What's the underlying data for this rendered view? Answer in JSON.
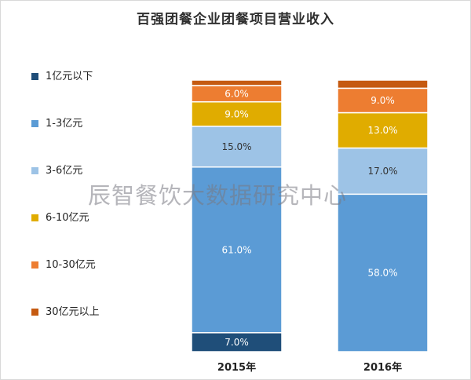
{
  "chart_data": {
    "type": "bar",
    "stacked": true,
    "title": "百强团餐企业团餐项目营业收入",
    "categories": [
      "2015年",
      "2016年"
    ],
    "series": [
      {
        "name": "1亿元以下",
        "color": "#1f4e79",
        "values": [
          7.0,
          0.0
        ],
        "labels": [
          "7.0%",
          ""
        ]
      },
      {
        "name": "1-3亿元",
        "color": "#5b9bd5",
        "values": [
          61.0,
          58.0
        ],
        "labels": [
          "61.0%",
          "58.0%"
        ]
      },
      {
        "name": "3-6亿元",
        "color": "#9dc3e6",
        "values": [
          15.0,
          17.0
        ],
        "labels": [
          "15.0%",
          "17.0%"
        ]
      },
      {
        "name": "6-10亿元",
        "color": "#e0ac00",
        "values": [
          9.0,
          13.0
        ],
        "labels": [
          "9.0%",
          "13.0%"
        ]
      },
      {
        "name": "10-30亿元",
        "color": "#ed7d31",
        "values": [
          6.0,
          9.0
        ],
        "labels": [
          "6.0%",
          "9.0%"
        ]
      },
      {
        "name": "30亿元以上",
        "color": "#c55a11",
        "values": [
          2.0,
          3.0
        ],
        "labels": [
          "",
          ""
        ]
      }
    ],
    "ylim": [
      0,
      100
    ],
    "grid": false,
    "legend_position": "left"
  },
  "watermark": "辰智餐饮大数据研究中心"
}
